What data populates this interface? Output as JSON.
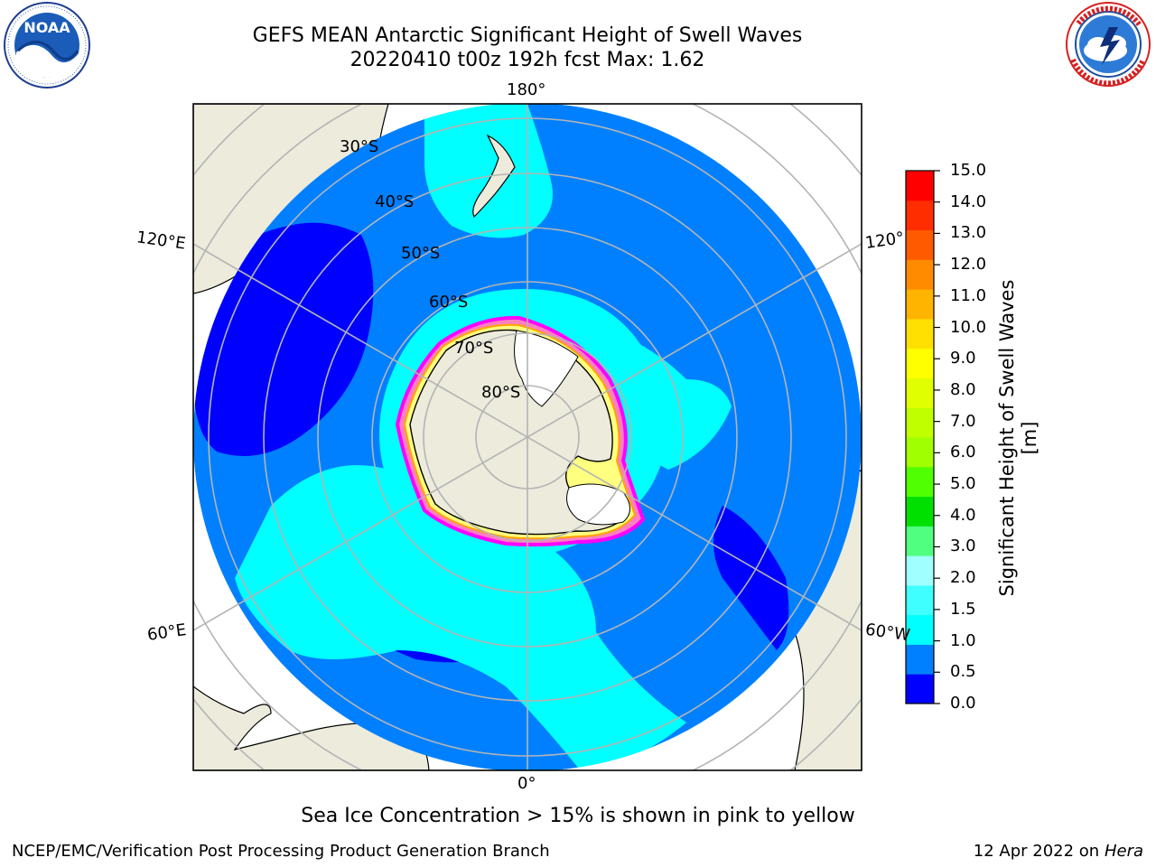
{
  "header": {
    "title": "GEFS MEAN Antarctic Significant Height of Swell Waves",
    "subtitle": "20220410 t00z 192h fcst   Max: 1.62"
  },
  "logos": {
    "left": {
      "name": "NOARA",
      "text": "NOAA",
      "ring_text": "NATIONAL OCEANIC AND ATMOSPHERIC ADMINISTRATION · U.S. DEPARTMENT OF COMMERCE"
    },
    "right": {
      "ring_text": "NATIONAL WEATHER SERVICE"
    }
  },
  "map": {
    "longitude_labels": {
      "top": "180°",
      "bottom": "0°",
      "left_upper": "120°E",
      "left_lower": "60°E",
      "right_upper": "120°",
      "right_lower": "60°W"
    },
    "latitude_labels": [
      "30°S",
      "40°S",
      "50°S",
      "60°S",
      "70°S",
      "80°S"
    ],
    "colors": {
      "land": "#ecebdc",
      "ice_free_land": "#ffffff",
      "ocean_0_0.5": "#0000ff",
      "ocean_0.5_1": "#0080ff",
      "ocean_1_1.5": "#00ffff",
      "grid": "#b4b4b4",
      "sea_ice": [
        "#ff00ff",
        "#ff80c0",
        "#ffff80",
        "#ffa500"
      ]
    }
  },
  "colorbar": {
    "label": "Significant Height of Swell Waves [m]",
    "ticks": [
      "15.0",
      "14.0",
      "13.0",
      "12.0",
      "11.0",
      "10.0",
      "9.0",
      "8.0",
      "7.0",
      "6.0",
      "5.0",
      "4.0",
      "3.0",
      "2.0",
      "1.5",
      "1.0",
      "0.5",
      "0.0"
    ],
    "colors_bottom_to_top": [
      "#0000ff",
      "#0080ff",
      "#00ffff",
      "#40ffff",
      "#a0ffff",
      "#50ff80",
      "#00e000",
      "#50ff00",
      "#a0ff00",
      "#c0ff00",
      "#e0ff00",
      "#ffff00",
      "#ffe000",
      "#ffb400",
      "#ff8c00",
      "#ff5a00",
      "#ff2d00",
      "#ff0000"
    ]
  },
  "caption": "Sea Ice Concentration > 15% is shown in pink to yellow",
  "footer": {
    "left": "NCEP/EMC/Verification Post Processing Product Generation Branch",
    "right_prefix": "12 Apr 2022 on ",
    "right_machine": "Hera"
  }
}
